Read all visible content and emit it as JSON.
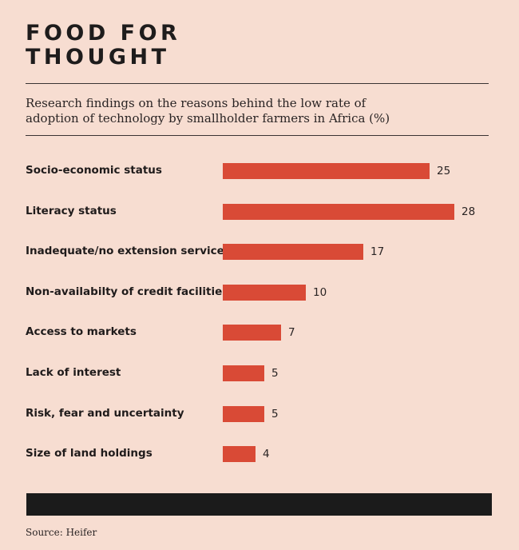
{
  "header": {
    "title_line1": "FOOD FOR",
    "title_line2": "THOUGHT",
    "subtitle_line1": "Research findings on the reasons behind the low rate of",
    "subtitle_line2": "adoption of technology by smallholder farmers in Africa (%)"
  },
  "chart_data": {
    "type": "bar",
    "orientation": "horizontal",
    "title": "FOOD FOR THOUGHT",
    "subtitle": "Research findings on the reasons behind the low rate of adoption of technology by smallholder farmers in Africa (%)",
    "categories": [
      "Socio-economic status",
      "Literacy status",
      "Inadequate/no extension services",
      "Non-availabilty of credit facilities",
      "Access to markets",
      "Lack of interest",
      "Risk, fear and uncertainty",
      "Size of land holdings"
    ],
    "values": [
      25,
      28,
      17,
      10,
      7,
      5,
      5,
      4
    ],
    "xlabel": "",
    "ylabel": "",
    "xlim": [
      0,
      28
    ],
    "grid": false,
    "bar_color": "#d94a36"
  },
  "footer": {
    "source": "Source: Heifer"
  },
  "colors": {
    "background": "#f7ddd1",
    "bar": "#d94a36",
    "band": "#1b1b1b"
  }
}
